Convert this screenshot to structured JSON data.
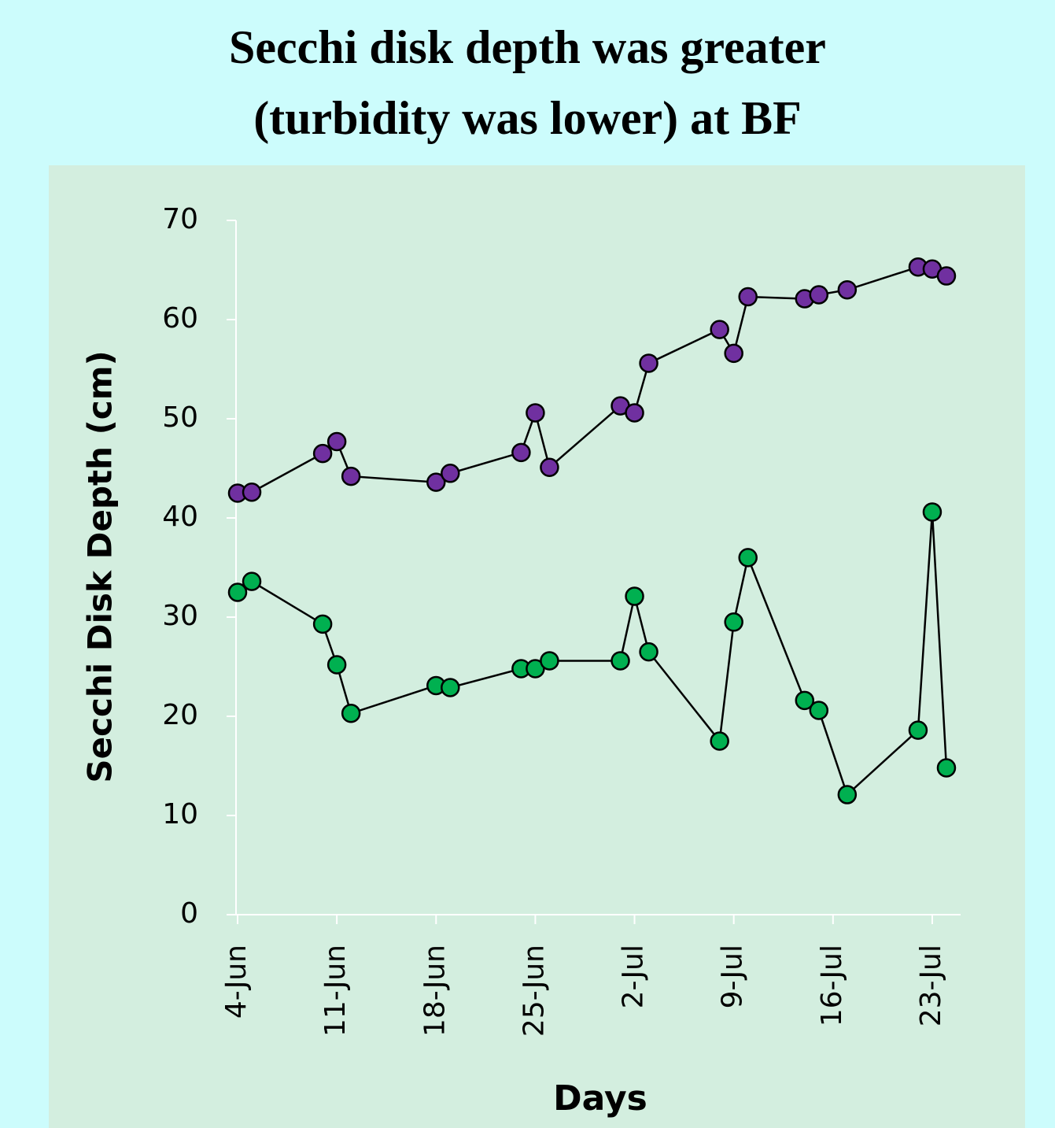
{
  "chart_data": {
    "type": "line",
    "title": "Secchi disk depth was greater (turbidity was lower) at BF",
    "xlabel": "Days",
    "ylabel": "Secchi Disk Depth (cm)",
    "x": [
      "4-Jun",
      "5-Jun",
      "10-Jun",
      "11-Jun",
      "12-Jun",
      "18-Jun",
      "19-Jun",
      "24-Jun",
      "25-Jun",
      "26-Jun",
      "1-Jul",
      "2-Jul",
      "3-Jul",
      "8-Jul",
      "9-Jul",
      "10-Jul",
      "14-Jul",
      "15-Jul",
      "17-Jul",
      "22-Jul",
      "23-Jul",
      "24-Jul"
    ],
    "series": [
      {
        "color": "#7030a0",
        "values": [
          42.5,
          42.6,
          46.5,
          47.7,
          44.2,
          43.6,
          44.5,
          46.6,
          50.6,
          45.1,
          51.3,
          50.6,
          55.6,
          59.0,
          56.6,
          62.3,
          62.1,
          62.5,
          63.0,
          65.3,
          65.1,
          64.4
        ]
      },
      {
        "color": "#00b050",
        "values": [
          32.5,
          33.6,
          29.3,
          25.2,
          20.3,
          23.1,
          22.9,
          24.8,
          24.8,
          25.6,
          25.6,
          32.1,
          26.5,
          17.5,
          29.5,
          36.0,
          21.6,
          20.6,
          12.1,
          18.6,
          40.6,
          14.8
        ]
      }
    ],
    "xlim": [
      "4-Jun",
      "25-Jul"
    ],
    "xticks": [
      "4-Jun",
      "11-Jun",
      "18-Jun",
      "25-Jun",
      "2-Jul",
      "9-Jul",
      "16-Jul",
      "23-Jul"
    ],
    "ylim": [
      0,
      70
    ],
    "yticks": [
      0,
      10,
      20,
      30,
      40,
      50,
      60,
      70
    ],
    "grid": false
  }
}
